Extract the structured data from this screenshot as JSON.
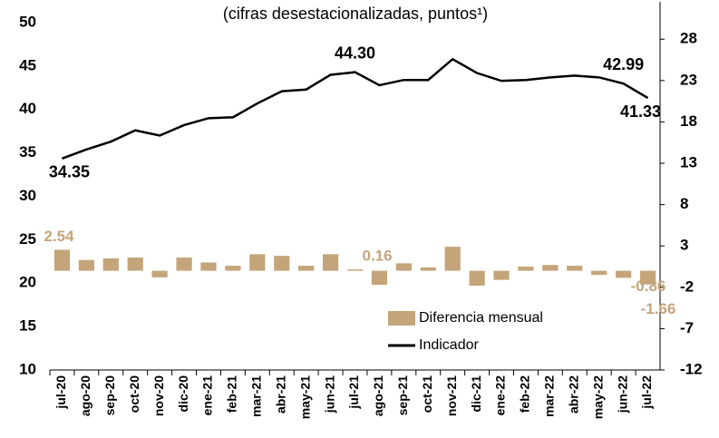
{
  "chart_data": {
    "type": "bar+line",
    "title": "(cifras desestacionalizadas, puntos¹)",
    "categories": [
      "jul-20",
      "ago-20",
      "sep-20",
      "oct-20",
      "nov-20",
      "dic-20",
      "ene-21",
      "feb-21",
      "mar-21",
      "abr-21",
      "may-21",
      "jun-21",
      "jul-21",
      "ago-21",
      "sep-21",
      "oct-21",
      "nov-21",
      "dic-21",
      "ene-22",
      "feb-22",
      "mar-22",
      "abr-22",
      "may-22",
      "jun-22",
      "jul-22"
    ],
    "series": [
      {
        "name": "Diferencia mensual",
        "type": "bar",
        "axis": "y2",
        "color": "#c4a57a",
        "values": [
          2.54,
          1.3,
          1.5,
          1.6,
          -0.8,
          1.6,
          1.0,
          0.6,
          2.0,
          1.8,
          0.6,
          2.0,
          0.16,
          -1.7,
          0.9,
          0.4,
          2.9,
          -1.8,
          -1.1,
          0.5,
          0.7,
          0.6,
          -0.5,
          -0.86,
          -1.66
        ],
        "value_labels": [
          "2.54",
          null,
          null,
          null,
          null,
          null,
          null,
          null,
          null,
          null,
          null,
          null,
          "0.16",
          null,
          null,
          null,
          null,
          null,
          null,
          null,
          null,
          null,
          null,
          "-0.86",
          "-1.66"
        ]
      },
      {
        "name": "Indicador",
        "type": "line",
        "axis": "y",
        "color": "#000000",
        "values": [
          34.35,
          35.4,
          36.3,
          37.6,
          37.0,
          38.2,
          39.0,
          39.1,
          40.7,
          42.1,
          42.3,
          44.0,
          44.3,
          42.8,
          43.4,
          43.4,
          45.8,
          44.2,
          43.3,
          43.4,
          43.7,
          43.9,
          43.7,
          42.99,
          41.33
        ],
        "value_labels": [
          "34.35",
          null,
          null,
          null,
          null,
          null,
          null,
          null,
          null,
          null,
          null,
          null,
          "44.30",
          null,
          null,
          null,
          null,
          null,
          null,
          null,
          null,
          null,
          null,
          "42.99",
          "41.33"
        ]
      }
    ],
    "ylim": [
      10,
      50
    ],
    "yticks": [
      10,
      15,
      20,
      25,
      30,
      35,
      40,
      45,
      50
    ],
    "y2lim": [
      -12,
      30
    ],
    "y2ticks": [
      -12,
      -7,
      -2,
      3,
      8,
      13,
      18,
      23,
      28
    ]
  }
}
